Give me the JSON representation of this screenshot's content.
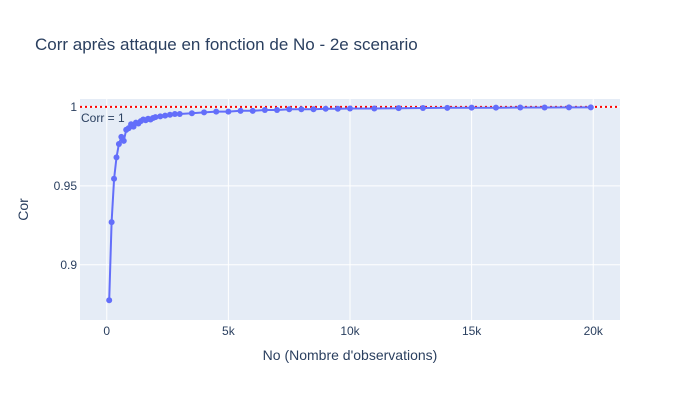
{
  "chart_data": {
    "type": "line",
    "title": "Corr après attaque en fonction de No - 2e scenario",
    "xlabel": "No (Nombre d'observations)",
    "ylabel": "Cor",
    "xlim": [
      -1100,
      21100
    ],
    "ylim": [
      0.865,
      1.005
    ],
    "x_ticks": [
      0,
      5000,
      10000,
      15000,
      20000
    ],
    "x_tick_labels": [
      "0",
      "5k",
      "10k",
      "15k",
      "20k"
    ],
    "y_ticks": [
      0.9,
      0.95,
      1
    ],
    "y_tick_labels": [
      "0.9",
      "0.95",
      "1"
    ],
    "grid": true,
    "mode": "lines+markers",
    "series": [
      {
        "name": "Corr",
        "color": "#636efa",
        "x": [
          100,
          200,
          300,
          400,
          500,
          600,
          700,
          800,
          900,
          1000,
          1100,
          1200,
          1300,
          1400,
          1500,
          1600,
          1700,
          1800,
          1900,
          2000,
          2200,
          2400,
          2600,
          2800,
          3000,
          3500,
          4000,
          4500,
          5000,
          5500,
          6000,
          6500,
          7000,
          7500,
          8000,
          8500,
          9000,
          9500,
          10000,
          11000,
          12000,
          13000,
          14000,
          15000,
          16000,
          17000,
          18000,
          19000,
          19900
        ],
        "y": [
          0.8775,
          0.927,
          0.9545,
          0.968,
          0.9765,
          0.981,
          0.9785,
          0.9855,
          0.9865,
          0.989,
          0.9875,
          0.99,
          0.9895,
          0.991,
          0.992,
          0.9915,
          0.9925,
          0.992,
          0.993,
          0.9935,
          0.994,
          0.9945,
          0.995,
          0.9955,
          0.9955,
          0.996,
          0.9965,
          0.997,
          0.997,
          0.9975,
          0.9975,
          0.998,
          0.998,
          0.9985,
          0.9985,
          0.9985,
          0.9988,
          0.9988,
          0.999,
          0.999,
          0.9992,
          0.9993,
          0.9994,
          0.9995,
          0.9995,
          0.9996,
          0.9996,
          0.9997,
          0.9997
        ]
      }
    ],
    "reference_line": {
      "y": 1,
      "color": "#ff0000",
      "style": "dotted",
      "label": "Corr = 1"
    },
    "colors": {
      "plot_background": "#e5ecf6",
      "grid": "#ffffff",
      "text": "#2a3f5f"
    }
  }
}
